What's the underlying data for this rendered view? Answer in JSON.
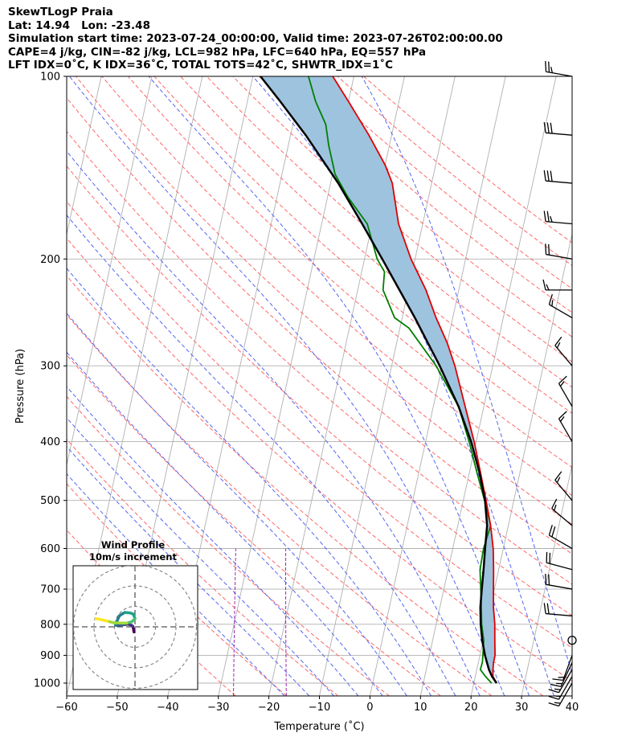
{
  "header": {
    "line1": "SkewTLogP Praia",
    "line2": "Lat: 14.94   Lon: -23.48",
    "line3": "Simulation start time: 2023-07-24_00:00:00, Valid time: 2023-07-26T02:00:00.00",
    "line4": "CAPE=4 j/kg, CIN=-82 j/kg, LCL=982 hPa, LFC=640 hPa, EQ=557 hPa",
    "line5": "LFT IDX=0˚C, K IDX=36˚C, TOTAL TOTS=42˚C, SHWTR_IDX=1˚C"
  },
  "chart_data": {
    "type": "skew-t log-p",
    "xlabel": "Temperature (˚C)",
    "ylabel": "Pressure (hPa)",
    "xlim": [
      -60,
      40
    ],
    "ylim": [
      1050,
      100
    ],
    "x_ticks": [
      "−60",
      "−50",
      "−40",
      "−30",
      "−20",
      "−10",
      "0",
      "10",
      "20",
      "30",
      "40"
    ],
    "y_ticks": [
      "100",
      "200",
      "300",
      "400",
      "500",
      "600",
      "700",
      "800",
      "900",
      "1000"
    ],
    "grid": true,
    "colors": {
      "temperature": "#e00000",
      "dewpoint": "#008000",
      "parcel": "#000000",
      "cape_fill": "#9ec3de",
      "isotherm": "#b0b0b0",
      "dry_adiabat": "#ff6666",
      "moist_adiabat": "#5566ee",
      "mixing_ratio": "#9c27b0"
    },
    "temperature_profile": [
      [
        1000,
        24.5
      ],
      [
        975,
        23.5
      ],
      [
        950,
        23.2
      ],
      [
        925,
        23.0
      ],
      [
        900,
        23.0
      ],
      [
        850,
        22.3
      ],
      [
        800,
        21.6
      ],
      [
        750,
        20.6
      ],
      [
        700,
        19.8
      ],
      [
        650,
        19.0
      ],
      [
        600,
        18.0
      ],
      [
        550,
        16.5
      ],
      [
        500,
        14.5
      ],
      [
        450,
        12.2
      ],
      [
        400,
        9.6
      ],
      [
        350,
        6.3
      ],
      [
        300,
        2.5
      ],
      [
        275,
        0.0
      ],
      [
        250,
        -3.3
      ],
      [
        225,
        -6.5
      ],
      [
        200,
        -10.8
      ],
      [
        175,
        -14.8
      ],
      [
        150,
        -17.8
      ],
      [
        140,
        -20.0
      ],
      [
        125,
        -24.5
      ],
      [
        110,
        -30.0
      ],
      [
        100,
        -34.2
      ]
    ],
    "dewpoint_profile": [
      [
        1000,
        23.5
      ],
      [
        975,
        22.0
      ],
      [
        950,
        20.7
      ],
      [
        925,
        20.8
      ],
      [
        900,
        20.6
      ],
      [
        850,
        20.1
      ],
      [
        800,
        19.0
      ],
      [
        750,
        18.2
      ],
      [
        700,
        17.3
      ],
      [
        650,
        16.3
      ],
      [
        600,
        16.1
      ],
      [
        550,
        16.5
      ],
      [
        500,
        14.2
      ],
      [
        450,
        11.5
      ],
      [
        400,
        8.6
      ],
      [
        350,
        5.0
      ],
      [
        300,
        -1.2
      ],
      [
        260,
        -8.2
      ],
      [
        250,
        -11.5
      ],
      [
        225,
        -15.0
      ],
      [
        210,
        -15.5
      ],
      [
        200,
        -17.5
      ],
      [
        175,
        -21.0
      ],
      [
        158,
        -26.0
      ],
      [
        145,
        -29.5
      ],
      [
        130,
        -32.0
      ],
      [
        120,
        -33.5
      ],
      [
        110,
        -36.5
      ],
      [
        100,
        -39.0
      ]
    ],
    "parcel_profile": [
      [
        1000,
        24.5
      ],
      [
        975,
        23.3
      ],
      [
        950,
        22.4
      ],
      [
        925,
        21.7
      ],
      [
        900,
        21.0
      ],
      [
        850,
        19.8
      ],
      [
        800,
        18.8
      ],
      [
        750,
        18.0
      ],
      [
        700,
        17.5
      ],
      [
        650,
        17.0
      ],
      [
        600,
        16.4
      ],
      [
        550,
        15.8
      ],
      [
        500,
        14.3
      ],
      [
        450,
        12.0
      ],
      [
        400,
        9.0
      ],
      [
        350,
        5.0
      ],
      [
        300,
        -0.5
      ],
      [
        250,
        -7.5
      ],
      [
        200,
        -16.5
      ],
      [
        175,
        -22.0
      ],
      [
        150,
        -28.5
      ],
      [
        125,
        -37.0
      ],
      [
        110,
        -43.5
      ],
      [
        100,
        -48.5
      ]
    ],
    "wind_barbs": [
      {
        "p": 100,
        "speed_kt": 25,
        "dir": 280
      },
      {
        "p": 125,
        "speed_kt": 30,
        "dir": 275
      },
      {
        "p": 150,
        "speed_kt": 30,
        "dir": 275
      },
      {
        "p": 175,
        "speed_kt": 25,
        "dir": 275
      },
      {
        "p": 200,
        "speed_kt": 20,
        "dir": 280
      },
      {
        "p": 225,
        "speed_kt": 15,
        "dir": 270
      },
      {
        "p": 250,
        "speed_kt": 15,
        "dir": 300
      },
      {
        "p": 300,
        "speed_kt": 15,
        "dir": 320
      },
      {
        "p": 350,
        "speed_kt": 15,
        "dir": 330
      },
      {
        "p": 400,
        "speed_kt": 15,
        "dir": 330
      },
      {
        "p": 500,
        "speed_kt": 15,
        "dir": 320
      },
      {
        "p": 550,
        "speed_kt": 15,
        "dir": 310
      },
      {
        "p": 600,
        "speed_kt": 20,
        "dir": 300
      },
      {
        "p": 650,
        "speed_kt": 20,
        "dir": 285
      },
      {
        "p": 700,
        "speed_kt": 20,
        "dir": 280
      },
      {
        "p": 775,
        "speed_kt": 20,
        "dir": 275
      },
      {
        "p": 850,
        "speed_kt": 0,
        "dir": 0
      },
      {
        "p": 900,
        "speed_kt": 15,
        "dir": 200
      },
      {
        "p": 925,
        "speed_kt": 15,
        "dir": 205
      },
      {
        "p": 950,
        "speed_kt": 15,
        "dir": 210
      },
      {
        "p": 975,
        "speed_kt": 15,
        "dir": 210
      },
      {
        "p": 1000,
        "speed_kt": 15,
        "dir": 210
      }
    ],
    "hodograph": {
      "title": "Wind Profile",
      "subtitle": "10m/s increment",
      "rings_ms": [
        10,
        20,
        30
      ],
      "trace_uv": [
        [
          -0.5,
          -2.5
        ],
        [
          -0.7,
          -1.2
        ],
        [
          -1.0,
          0.2
        ],
        [
          -1.8,
          0.8
        ],
        [
          -3.5,
          1.3
        ],
        [
          -5.5,
          1.0
        ],
        [
          -7.8,
          0.6
        ],
        [
          -9.5,
          0.8
        ],
        [
          -8.5,
          3.5
        ],
        [
          -7.5,
          5.5
        ],
        [
          -5.0,
          7.0
        ],
        [
          -2.5,
          6.8
        ],
        [
          -0.8,
          6.2
        ],
        [
          0.0,
          4.0
        ],
        [
          -1.5,
          2.5
        ],
        [
          -4.0,
          1.8
        ],
        [
          -7.0,
          1.8
        ],
        [
          -10.5,
          2.0
        ],
        [
          -13.5,
          2.8
        ],
        [
          -16.5,
          3.5
        ],
        [
          -19.0,
          4.0
        ]
      ]
    }
  }
}
